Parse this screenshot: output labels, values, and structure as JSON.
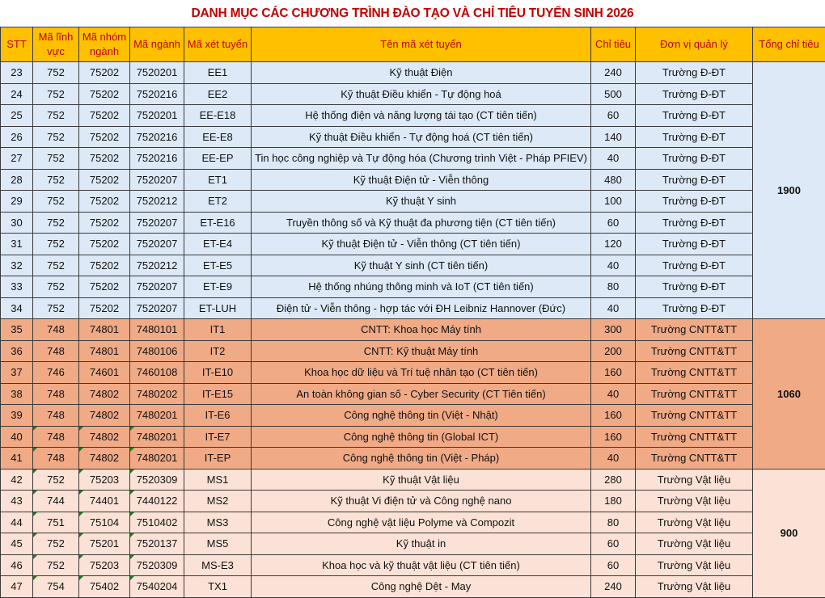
{
  "title": "DANH MỤC CÁC CHƯƠNG TRÌNH ĐÀO TẠO VÀ CHỈ TIÊU TUYỂN SINH 2026",
  "headers": [
    "STT",
    "Mã lĩnh vực",
    "Mã nhóm ngành",
    "Mã ngành",
    "Mã xét tuyển",
    "Tên mã xét tuyển",
    "Chỉ tiêu",
    "Đơn vị quản lý",
    "Tổng chỉ tiêu"
  ],
  "colors": {
    "header": "#ffc000",
    "title": "#c00000",
    "group_1": "#dde9f6",
    "group_2": "#f0aa86",
    "group_3": "#fce2d6",
    "note_marker": "#1e7b1e"
  },
  "groups": [
    {
      "total": "1900",
      "rows": [
        [
          "23",
          "752",
          "75202",
          "7520201",
          "EE1",
          "Kỹ thuật Điện",
          "240",
          "Trường Đ-ĐT"
        ],
        [
          "24",
          "752",
          "75202",
          "7520216",
          "EE2",
          "Kỹ thuật Điều khiển - Tự động hoá",
          "500",
          "Trường Đ-ĐT"
        ],
        [
          "25",
          "752",
          "75202",
          "7520201",
          "EE-E18",
          "Hệ thống điện và năng lượng tái tạo (CT tiên tiến)",
          "60",
          "Trường Đ-ĐT"
        ],
        [
          "26",
          "752",
          "75202",
          "7520216",
          "EE-E8",
          "Kỹ thuật Điều khiển - Tự động hoá (CT tiên tiến)",
          "140",
          "Trường Đ-ĐT"
        ],
        [
          "27",
          "752",
          "75202",
          "7520216",
          "EE-EP",
          "Tin học công nghiệp và Tự động hóa (Chương trình Việt - Pháp PFIEV)",
          "40",
          "Trường Đ-ĐT"
        ],
        [
          "28",
          "752",
          "75202",
          "7520207",
          "ET1",
          "Kỹ thuật Điện tử - Viễn thông",
          "480",
          "Trường Đ-ĐT"
        ],
        [
          "29",
          "752",
          "75202",
          "7520212",
          "ET2",
          "Kỹ thuật Y sinh",
          "100",
          "Trường Đ-ĐT"
        ],
        [
          "30",
          "752",
          "75202",
          "7520207",
          "ET-E16",
          "Truyền thông số và Kỹ thuật đa phương tiện (CT tiên tiến)",
          "60",
          "Trường Đ-ĐT"
        ],
        [
          "31",
          "752",
          "75202",
          "7520207",
          "ET-E4",
          "Kỹ thuật Điện tử - Viễn thông (CT tiên tiến)",
          "120",
          "Trường Đ-ĐT"
        ],
        [
          "32",
          "752",
          "75202",
          "7520212",
          "ET-E5",
          "Kỹ thuật Y sinh (CT tiên tiến)",
          "40",
          "Trường Đ-ĐT"
        ],
        [
          "33",
          "752",
          "75202",
          "7520207",
          "ET-E9",
          "Hệ thống nhúng thông minh và IoT (CT tiên tiến)",
          "80",
          "Trường Đ-ĐT"
        ],
        [
          "34",
          "752",
          "75202",
          "7520207",
          "ET-LUH",
          "Điện tử - Viễn thông - hợp tác với ĐH Leibniz Hannover (Đức)",
          "40",
          "Trường Đ-ĐT"
        ]
      ]
    },
    {
      "total": "1060",
      "rows": [
        [
          "35",
          "748",
          "74801",
          "7480101",
          "IT1",
          "CNTT: Khoa học Máy tính",
          "300",
          "Trường CNTT&TT"
        ],
        [
          "36",
          "748",
          "74801",
          "7480106",
          "IT2",
          "CNTT: Kỹ thuật Máy tính",
          "200",
          "Trường CNTT&TT"
        ],
        [
          "37",
          "746",
          "74601",
          "7460108",
          "IT-E10",
          "Khoa học dữ liệu và Trí tuệ nhân tạo (CT tiên tiến)",
          "160",
          "Trường CNTT&TT"
        ],
        [
          "38",
          "748",
          "74802",
          "7480202",
          "IT-E15",
          "An toàn không gian số - Cyber Security (CT Tiên tiến)",
          "40",
          "Trường CNTT&TT"
        ],
        [
          "39",
          "748",
          "74802",
          "7480201",
          "IT-E6",
          "Công nghệ thông tin (Việt - Nhật)",
          "160",
          "Trường CNTT&TT"
        ],
        [
          "40",
          "748",
          "74802",
          "7480201",
          "IT-E7",
          "Công nghệ thông tin (Global ICT)",
          "160",
          "Trường CNTT&TT"
        ],
        [
          "41",
          "748",
          "74802",
          "7480201",
          "IT-EP",
          "Công nghệ thông tin (Việt - Pháp)",
          "40",
          "Trường CNTT&TT"
        ]
      ]
    },
    {
      "total": "900",
      "rows": [
        [
          "42",
          "752",
          "75203",
          "7520309",
          "MS1",
          "Kỹ thuật Vật liệu",
          "280",
          "Trường Vật liệu"
        ],
        [
          "43",
          "744",
          "74401",
          "7440122",
          "MS2",
          "Kỹ thuật Vi điện tử và Công nghệ nano",
          "180",
          "Trường Vật liệu"
        ],
        [
          "44",
          "751",
          "75104",
          "7510402",
          "MS3",
          "Công nghệ vật liệu Polyme và Compozit",
          "80",
          "Trường Vật liệu"
        ],
        [
          "45",
          "752",
          "75201",
          "7520137",
          "MS5",
          "Kỹ thuật in",
          "60",
          "Trường Vật liệu"
        ],
        [
          "46",
          "752",
          "75203",
          "7520309",
          "MS-E3",
          "Khoa học và kỹ thuật vật liệu (CT tiên tiến)",
          "60",
          "Trường Vật liệu"
        ],
        [
          "47",
          "754",
          "75402",
          "7540204",
          "TX1",
          "Công nghệ Dệt - May",
          "240",
          "Trường Vật liệu"
        ]
      ]
    }
  ]
}
